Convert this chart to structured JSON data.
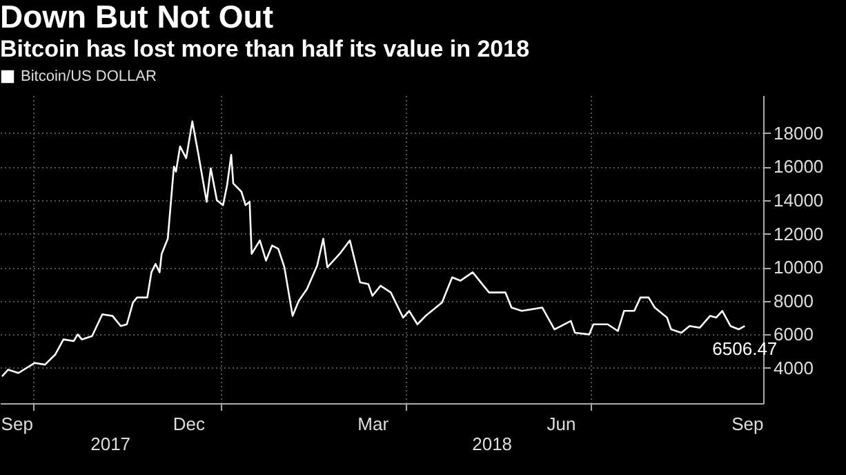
{
  "chart_data": {
    "type": "line",
    "title": "Down But Not Out",
    "subtitle": "Bitcoin has lost more than half its value in 2018",
    "x": [
      "2017-09-16",
      "2017-09-19",
      "2017-09-24",
      "2017-10-02",
      "2017-10-07",
      "2017-10-12",
      "2017-10-16",
      "2017-10-21",
      "2017-10-23",
      "2017-10-25",
      "2017-10-30",
      "2017-11-04",
      "2017-11-09",
      "2017-11-13",
      "2017-11-16",
      "2017-11-19",
      "2017-11-21",
      "2017-11-26",
      "2017-11-28",
      "2017-11-30",
      "2017-12-02",
      "2017-12-03",
      "2017-12-06",
      "2017-12-09",
      "2017-12-10",
      "2017-12-12",
      "2017-12-15",
      "2017-12-18",
      "2017-12-21",
      "2017-12-25",
      "2017-12-27",
      "2017-12-30",
      "2018-01-02",
      "2018-01-04",
      "2018-01-06",
      "2018-01-07",
      "2018-01-11",
      "2018-01-13",
      "2018-01-15",
      "2018-01-16",
      "2018-01-20",
      "2018-01-23",
      "2018-01-26",
      "2018-01-29",
      "2018-02-01",
      "2018-02-05",
      "2018-02-08",
      "2018-02-12",
      "2018-02-17",
      "2018-02-20",
      "2018-02-22",
      "2018-02-28",
      "2018-03-05",
      "2018-03-10",
      "2018-03-14",
      "2018-03-16",
      "2018-03-20",
      "2018-03-25",
      "2018-03-31",
      "2018-04-03",
      "2018-04-07",
      "2018-04-11",
      "2018-04-19",
      "2018-04-24",
      "2018-04-28",
      "2018-05-04",
      "2018-05-12",
      "2018-05-20",
      "2018-05-23",
      "2018-05-28",
      "2018-06-07",
      "2018-06-13",
      "2018-06-21",
      "2018-06-23",
      "2018-06-30",
      "2018-07-02",
      "2018-07-09",
      "2018-07-14",
      "2018-07-17",
      "2018-07-22",
      "2018-07-25",
      "2018-07-29",
      "2018-08-01",
      "2018-08-07",
      "2018-08-09",
      "2018-08-14",
      "2018-08-18",
      "2018-08-23",
      "2018-08-28",
      "2018-08-31",
      "2018-09-03",
      "2018-09-07",
      "2018-09-11",
      "2018-09-14"
    ],
    "series": [
      {
        "name": "Bitcoin/US DOLLAR",
        "color": "#ffffff",
        "values": [
          3500,
          3900,
          3700,
          4300,
          4200,
          4800,
          5700,
          5600,
          6000,
          5700,
          5900,
          7200,
          7100,
          6500,
          6600,
          7900,
          8200,
          8200,
          9700,
          10200,
          9700,
          10800,
          11700,
          16000,
          15700,
          17200,
          16500,
          18700,
          16700,
          13900,
          15900,
          14000,
          13700,
          14900,
          16700,
          15000,
          14500,
          13700,
          13900,
          10800,
          11600,
          10400,
          11300,
          11100,
          10000,
          7100,
          8000,
          8700,
          10100,
          11700,
          10000,
          10800,
          11600,
          9100,
          9000,
          8300,
          8900,
          8500,
          7000,
          7400,
          6600,
          7100,
          7900,
          9400,
          9200,
          9700,
          8500,
          8500,
          7600,
          7400,
          7600,
          6300,
          6800,
          6100,
          6000,
          6600,
          6600,
          6200,
          7400,
          7400,
          8200,
          8200,
          7600,
          7000,
          6300,
          6100,
          6500,
          6400,
          7100,
          7000,
          7400,
          6500,
          6300,
          6506.47
        ]
      }
    ],
    "xlim": [
      "2017-09-15",
      "2018-09-23"
    ],
    "xticks": [
      {
        "value": "2017-09-23",
        "label": "Sep"
      },
      {
        "value": "2017-10-01",
        "label": null
      },
      {
        "value": "2017-12-16",
        "label": "Dec"
      },
      {
        "value": "2018-01-01",
        "label": null
      },
      {
        "value": "2018-03-16",
        "label": "Mar"
      },
      {
        "value": "2018-04-01",
        "label": null
      },
      {
        "value": "2018-06-16",
        "label": "Jun"
      },
      {
        "value": "2018-07-01",
        "label": null
      },
      {
        "value": "2018-09-15",
        "label": "Sep"
      }
    ],
    "ylim": [
      1900,
      20250
    ],
    "yticks": [
      4000,
      6000,
      8000,
      10000,
      12000,
      14000,
      16000,
      18000
    ],
    "grid": true,
    "legend": "top left",
    "marker": "none",
    "line_style": "solid",
    "annotations": [
      {
        "text": "6506.47",
        "x": "2018-09-14",
        "y": 6506.47
      },
      "2017",
      "2018"
    ]
  }
}
